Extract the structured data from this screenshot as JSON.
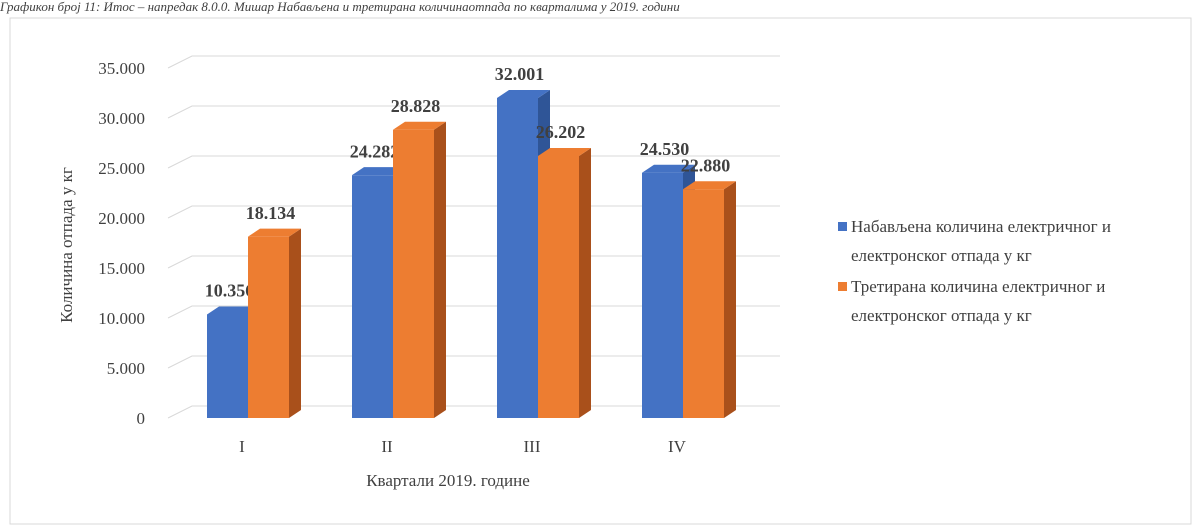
{
  "chart_data": {
    "type": "bar3d",
    "title": "Графикон број 11: Итос – напредак 8.0.0. Мишар Набављена и третирана количинаотпада по кварталима у 2019. години",
    "x_label": "Квартали 2019. године",
    "y_label": "Количина отпада у кг",
    "categories": [
      "I",
      "II",
      "III",
      "IV"
    ],
    "series": [
      {
        "name": "Набављена количина електричног и електронског отпада у кг",
        "color": "#4472c4",
        "side_color": "#2f5597",
        "values": [
          10356,
          24282,
          32001,
          24530
        ],
        "value_labels": [
          "10.356",
          "24.282",
          "32.001",
          "24.530"
        ]
      },
      {
        "name": "Третирана количина електричног и електронског отпада у кг",
        "color": "#ed7d31",
        "side_color": "#a9501b",
        "values": [
          18134,
          28828,
          26202,
          22880
        ],
        "value_labels": [
          "18.134",
          "28.828",
          "26.202",
          "22.880"
        ]
      }
    ],
    "ylim": [
      0,
      35000
    ],
    "yticks": [
      0,
      {
        "value": 5000,
        "label": "5.000"
      },
      {
        "value": 10000,
        "label": "10.000"
      },
      {
        "value": 15000,
        "label": "15.000"
      },
      {
        "value": 20000,
        "label": "20.000"
      },
      {
        "value": 25000,
        "label": "25.000"
      },
      {
        "value": 30000,
        "label": "30.000"
      },
      {
        "value": 35000,
        "label": "35.000"
      }
    ],
    "grid": true
  }
}
